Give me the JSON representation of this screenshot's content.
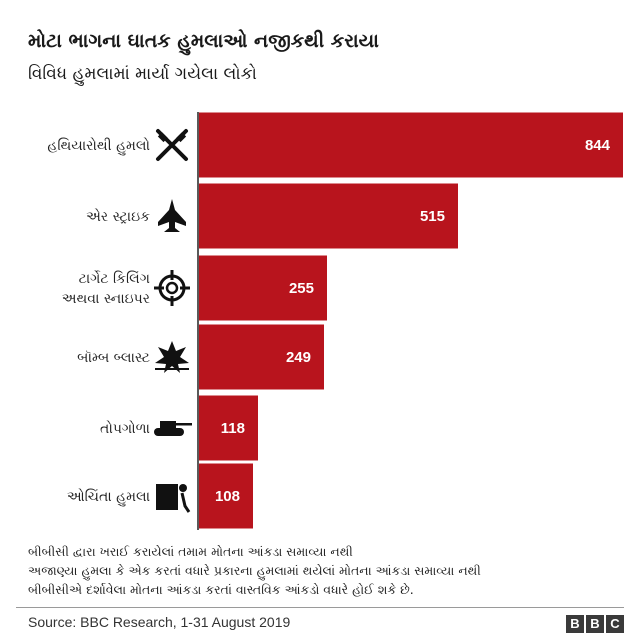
{
  "header": {
    "title": "મોટા ભાગના ઘાતક હુમલાઓ નજીકથી કરાયા",
    "subtitle": "વિવિધ હુમલામાં માર્યા ગયેલા લોકો"
  },
  "chart_data": {
    "type": "bar",
    "orientation": "horizontal",
    "title": "મોટા ભાગના ઘાતક હુમલાઓ નજીકથી કરાયા",
    "subtitle": "વિવિધ હુમલામાં માર્યા ગયેલા લોકો",
    "categories": [
      [
        "હથિયારોથી હુમલો"
      ],
      [
        "એર સ્ટ્રાઇક"
      ],
      [
        "ટાર્ગેટ કિલિંગ",
        "અથવા સ્નાઇપર"
      ],
      [
        "બૉમ્બ બ્લાસ્ટ"
      ],
      [
        "તોપગોળા"
      ],
      [
        "ઓચિંતા હુમલા"
      ]
    ],
    "values": [
      844,
      515,
      255,
      249,
      118,
      108
    ],
    "icons": [
      "crossed-guns-icon",
      "fighter-jet-icon",
      "crosshair-icon",
      "explosion-icon",
      "tank-icon",
      "ambush-icon"
    ],
    "bar_color": "#b8141d",
    "value_label_color": "#ffffff",
    "xlim": [
      0,
      844
    ],
    "grid": false,
    "legend": "none"
  },
  "notes": [
    "બીબીસી દ્વારા ખરાઈ કરાયેલાં તમામ મોતના આંકડા સમાવ્યા નથી",
    "અજાણ્યા હુમલા કે એક કરતાં વધારે પ્રકારના હુમલામાં થયેલાં મોતના આંકડા સમાવ્યા નથી",
    "બીબીસીએ દર્શાવેલા મોતના આંકડા કરતાં વાસ્તવિક આંકડો વધારે હોઈ શકે છે."
  ],
  "footer": {
    "source": "Source: BBC Research, 1-31 August 2019",
    "logo_letters": [
      "B",
      "B",
      "C"
    ]
  }
}
